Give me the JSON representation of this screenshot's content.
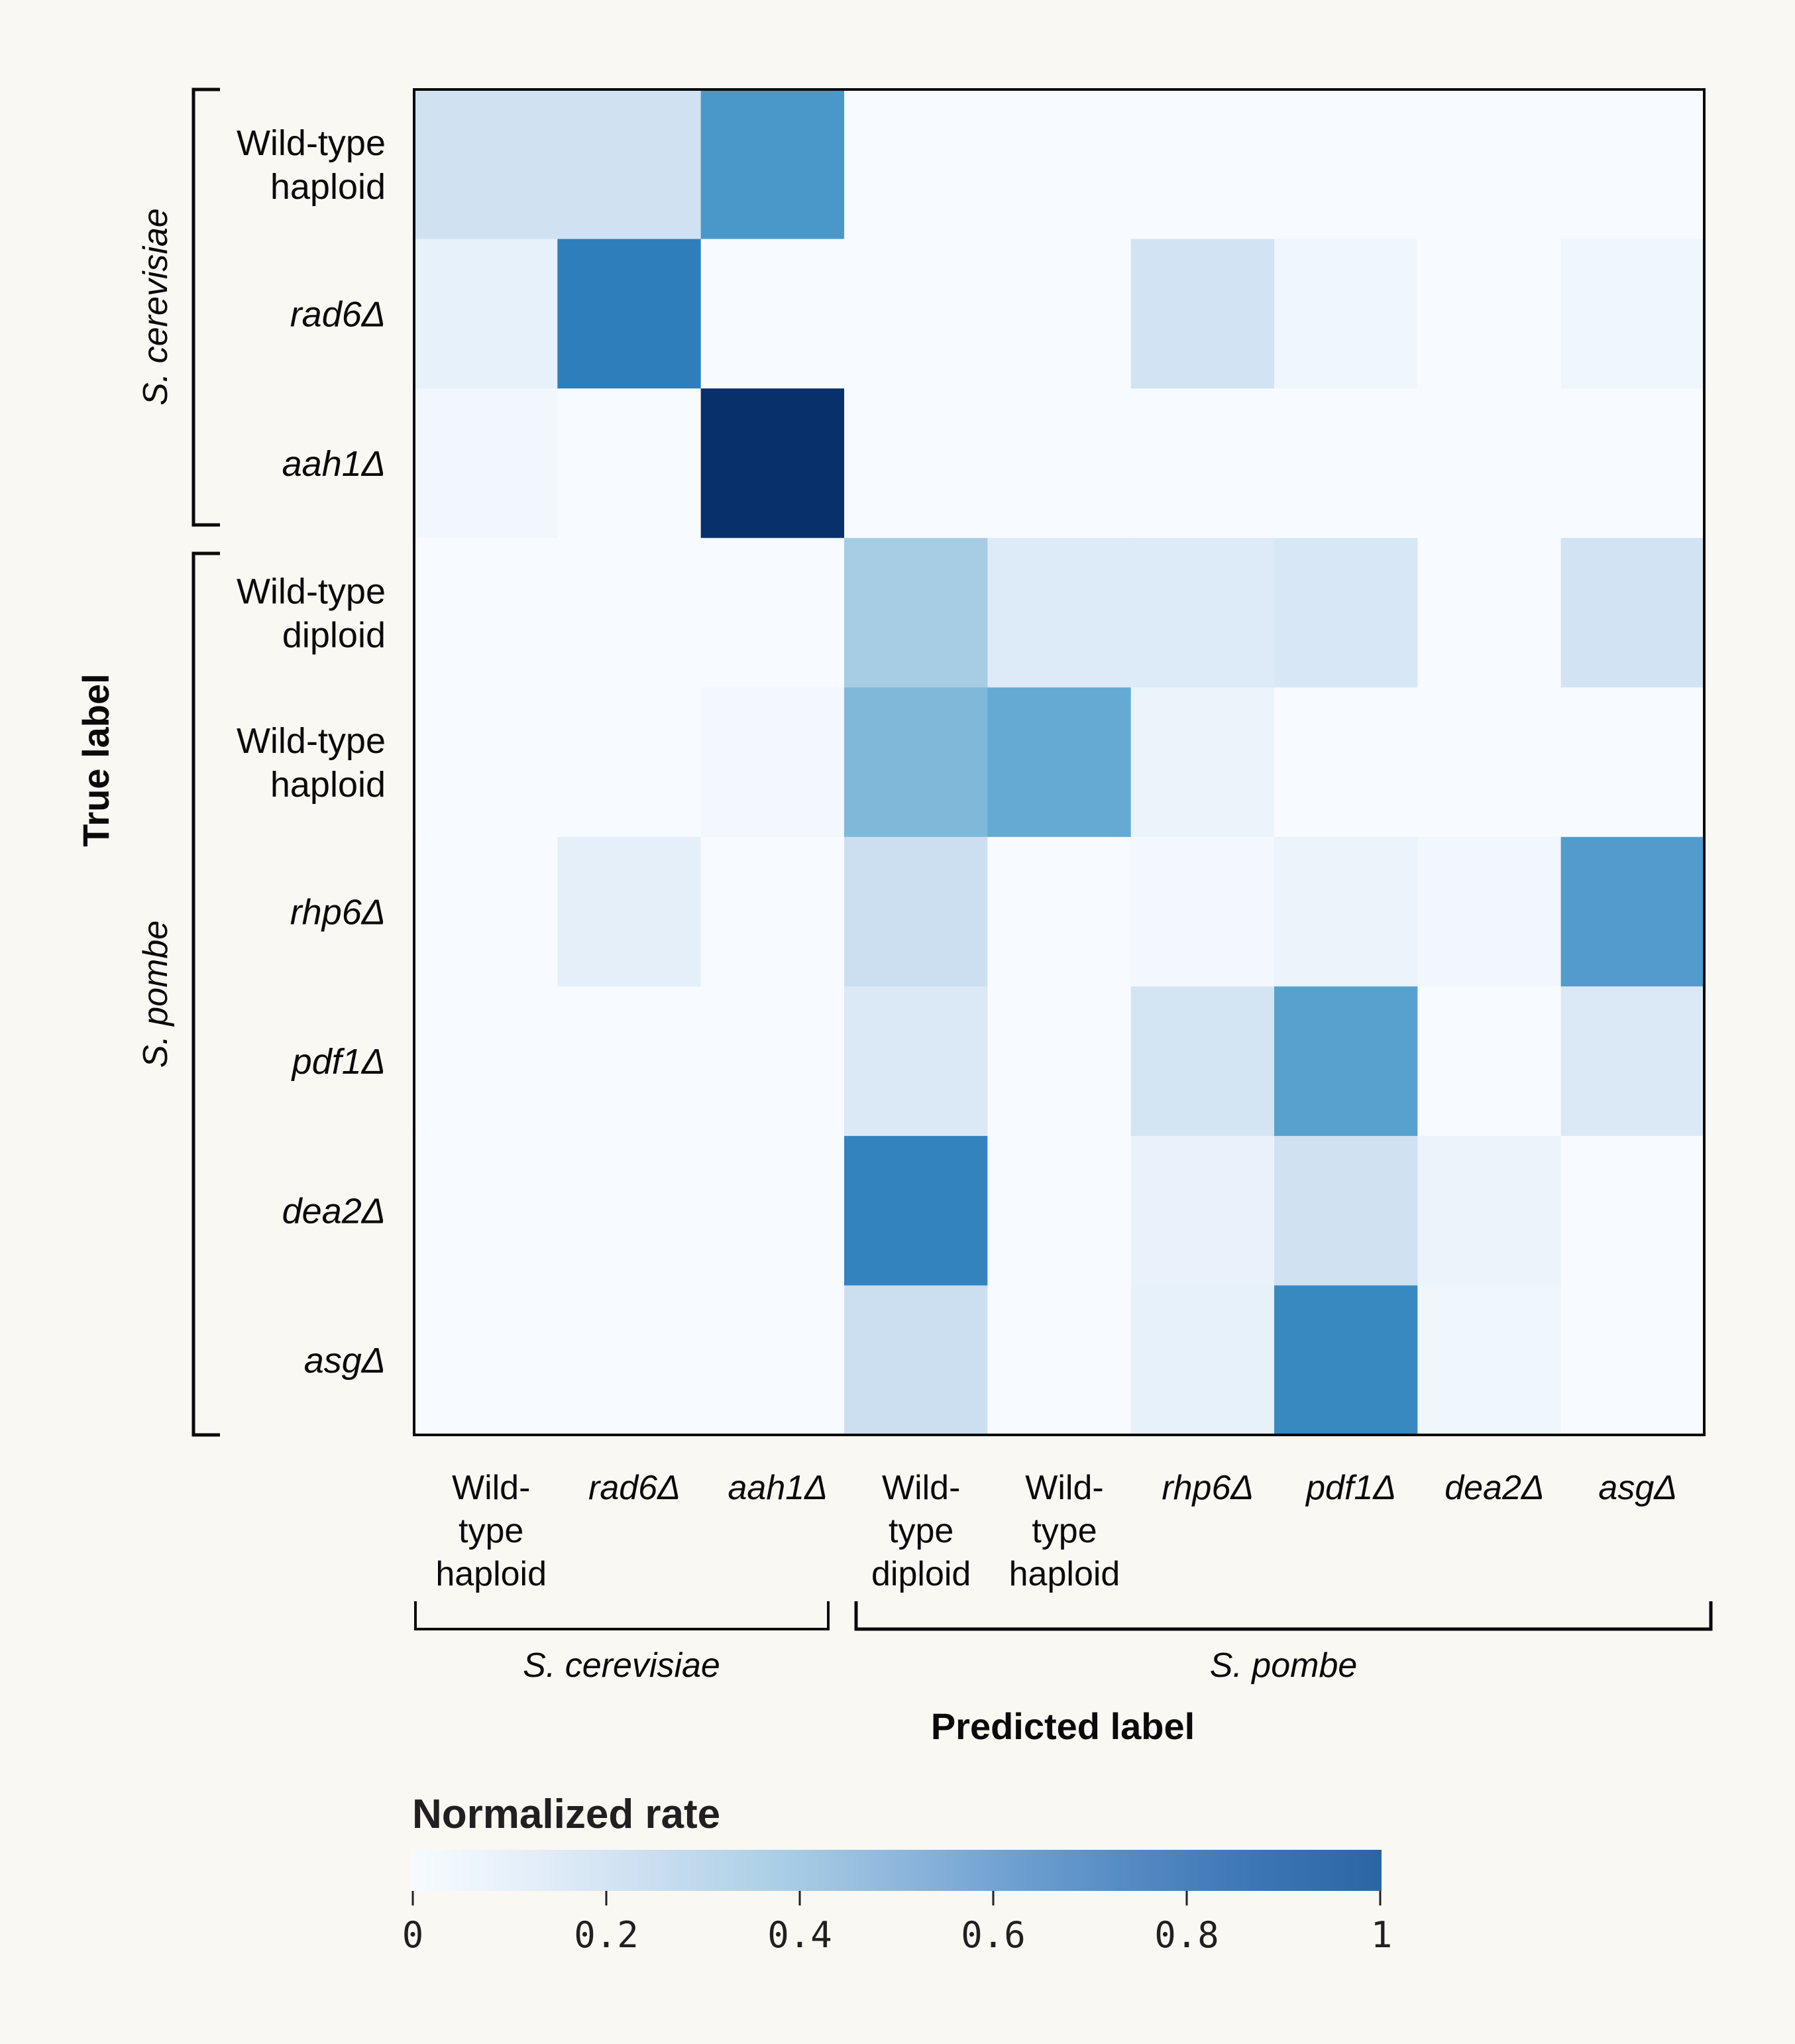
{
  "chart_data": {
    "type": "heatmap",
    "title": "",
    "xlabel": "Predicted label",
    "ylabel": "True label",
    "rows": [
      {
        "label": "Wild-type haploid",
        "lines": [
          "Wild-type",
          "haploid"
        ],
        "italic": false,
        "group": "S. cerevisiae"
      },
      {
        "label": "rad6Δ",
        "lines": [
          "rad6Δ"
        ],
        "italic": true,
        "group": "S. cerevisiae"
      },
      {
        "label": "aah1Δ",
        "lines": [
          "aah1Δ"
        ],
        "italic": true,
        "group": "S. cerevisiae"
      },
      {
        "label": "Wild-type diploid",
        "lines": [
          "Wild-type",
          "diploid"
        ],
        "italic": false,
        "group": "S. pombe"
      },
      {
        "label": "Wild-type haploid",
        "lines": [
          "Wild-type",
          "haploid"
        ],
        "italic": false,
        "group": "S. pombe"
      },
      {
        "label": "rhp6Δ",
        "lines": [
          "rhp6Δ"
        ],
        "italic": true,
        "group": "S. pombe"
      },
      {
        "label": "pdf1Δ",
        "lines": [
          "pdf1Δ"
        ],
        "italic": true,
        "group": "S. pombe"
      },
      {
        "label": "dea2Δ",
        "lines": [
          "dea2Δ"
        ],
        "italic": true,
        "group": "S. pombe"
      },
      {
        "label": "asgΔ",
        "lines": [
          "asgΔ"
        ],
        "italic": true,
        "group": "S. pombe"
      }
    ],
    "columns": [
      {
        "label": "Wild-type haploid",
        "lines": [
          "Wild-",
          "type",
          "haploid"
        ],
        "italic": false,
        "group": "S. cerevisiae"
      },
      {
        "label": "rad6Δ",
        "lines": [
          "rad6Δ"
        ],
        "italic": true,
        "group": "S. cerevisiae"
      },
      {
        "label": "aah1Δ",
        "lines": [
          "aah1Δ"
        ],
        "italic": true,
        "group": "S. cerevisiae"
      },
      {
        "label": "Wild-type diploid",
        "lines": [
          "Wild-",
          "type",
          "diploid"
        ],
        "italic": false,
        "group": "S. pombe"
      },
      {
        "label": "Wild-type haploid",
        "lines": [
          "Wild-",
          "type",
          "haploid"
        ],
        "italic": false,
        "group": "S. pombe"
      },
      {
        "label": "rhp6Δ",
        "lines": [
          "rhp6Δ"
        ],
        "italic": true,
        "group": "S. pombe"
      },
      {
        "label": "pdf1Δ",
        "lines": [
          "pdf1Δ"
        ],
        "italic": true,
        "group": "S. pombe"
      },
      {
        "label": "dea2Δ",
        "lines": [
          "dea2Δ"
        ],
        "italic": true,
        "group": "S. pombe"
      },
      {
        "label": "asgΔ",
        "lines": [
          "asgΔ"
        ],
        "italic": true,
        "group": "S. pombe"
      }
    ],
    "values": [
      [
        0.2,
        0.2,
        0.6,
        0.0,
        0.0,
        0.0,
        0.0,
        0.0,
        0.0
      ],
      [
        0.08,
        0.7,
        0.0,
        0.0,
        0.0,
        0.19,
        0.04,
        0.0,
        0.04
      ],
      [
        0.03,
        0.0,
        1.0,
        0.0,
        0.0,
        0.0,
        0.0,
        0.0,
        0.0
      ],
      [
        0.0,
        0.0,
        0.0,
        0.35,
        0.13,
        0.13,
        0.16,
        0.0,
        0.19
      ],
      [
        0.0,
        0.0,
        0.02,
        0.45,
        0.52,
        0.06,
        0.0,
        0.0,
        0.0
      ],
      [
        0.0,
        0.09,
        0.0,
        0.22,
        0.0,
        0.02,
        0.06,
        0.03,
        0.58
      ],
      [
        0.0,
        0.0,
        0.0,
        0.14,
        0.0,
        0.18,
        0.56,
        0.0,
        0.14
      ],
      [
        0.0,
        0.0,
        0.0,
        0.68,
        0.0,
        0.07,
        0.2,
        0.06,
        0.0
      ],
      [
        0.0,
        0.0,
        0.0,
        0.22,
        0.0,
        0.08,
        0.66,
        0.04,
        0.0
      ]
    ],
    "row_groups": [
      {
        "name": "S. cerevisiae",
        "rows": [
          0,
          2
        ]
      },
      {
        "name": "S. pombe",
        "rows": [
          3,
          8
        ]
      }
    ],
    "column_groups": [
      {
        "name": "S. cerevisiae",
        "cols": [
          0,
          2
        ]
      },
      {
        "name": "S. pombe",
        "cols": [
          3,
          8
        ]
      }
    ],
    "colorbar": {
      "title": "Normalized rate",
      "range": [
        0,
        1
      ],
      "ticks": [
        0,
        0.2,
        0.4,
        0.6,
        0.8,
        1
      ],
      "tick_labels": [
        "0",
        "0.2",
        "0.4",
        "0.6",
        "0.8",
        "1"
      ],
      "colormap": "Blues",
      "color_low": "#f7fbff",
      "color_high": "#2c66a2"
    },
    "grid": false,
    "legend": "bottom"
  }
}
